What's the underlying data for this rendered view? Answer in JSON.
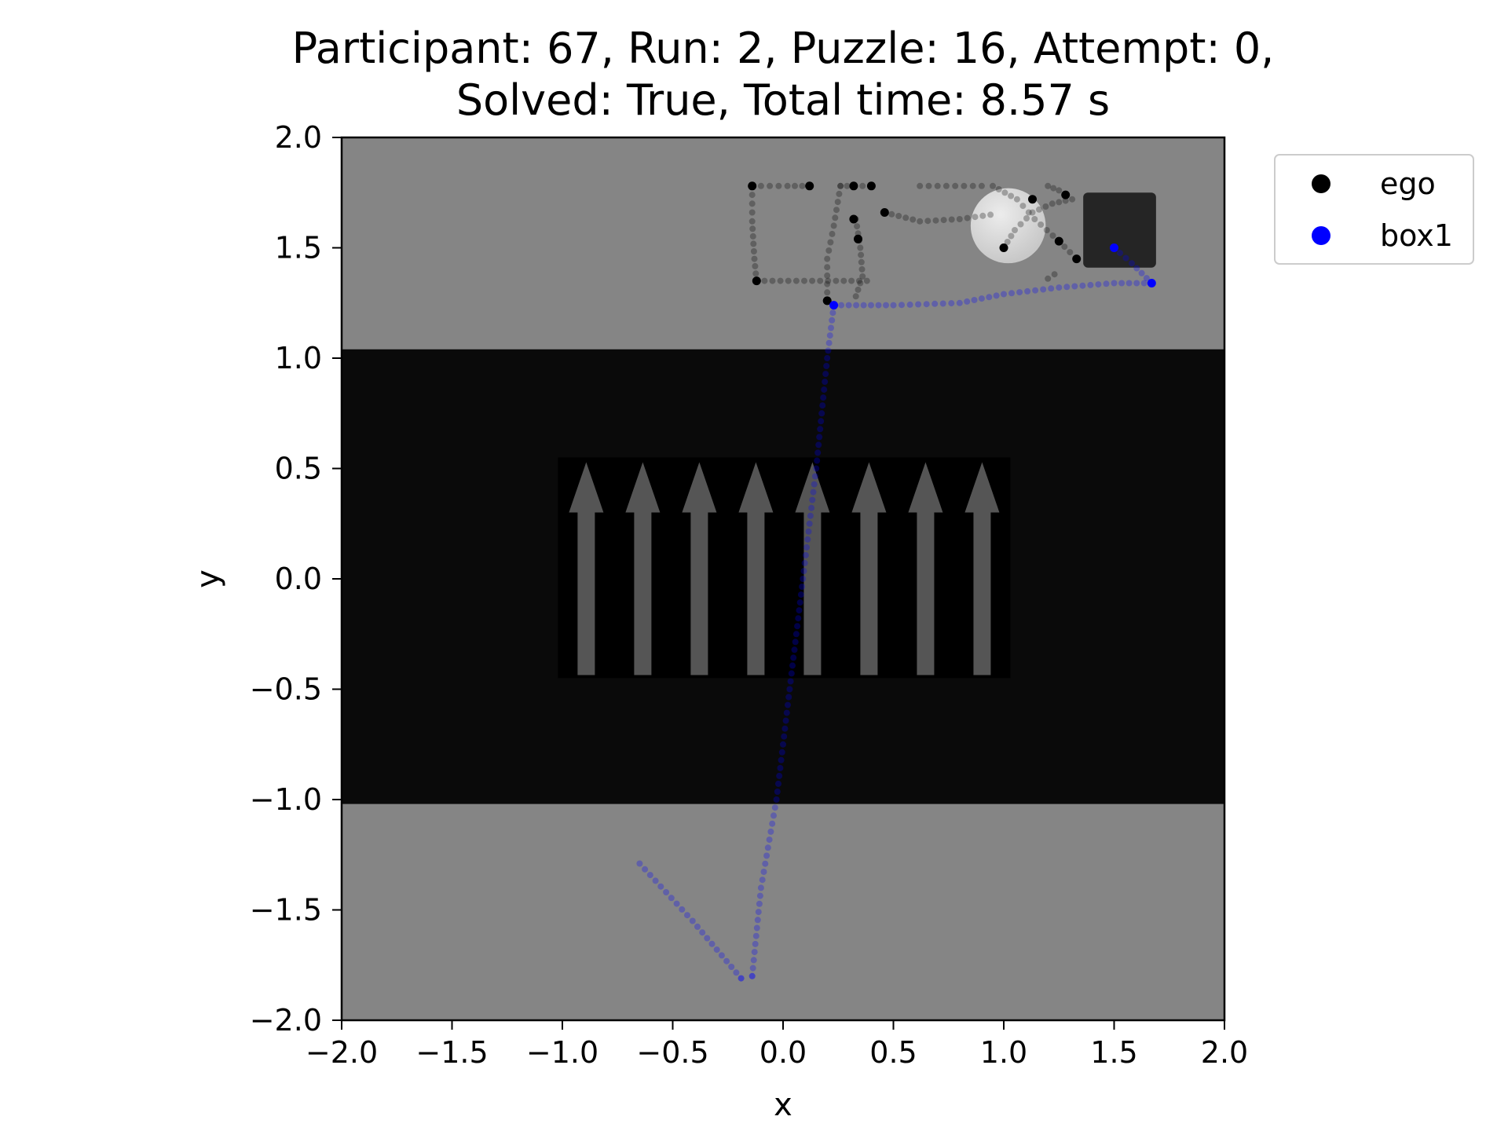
{
  "chart_data": {
    "type": "scatter",
    "title_lines": [
      "Participant: 67, Run: 2, Puzzle: 16, Attempt: 0,",
      "Solved: True, Total time: 8.57 s"
    ],
    "xlabel": "x",
    "ylabel": "y",
    "xlim": [
      -2.0,
      2.0
    ],
    "ylim": [
      -2.0,
      2.0
    ],
    "xticks": [
      -2.0,
      -1.5,
      -1.0,
      -0.5,
      0.0,
      0.5,
      1.0,
      1.5,
      2.0
    ],
    "yticks": [
      -2.0,
      -1.5,
      -1.0,
      -0.5,
      0.0,
      0.5,
      1.0,
      1.5,
      2.0
    ],
    "xtick_labels": [
      "−2.0",
      "−1.5",
      "−1.0",
      "−0.5",
      "0.0",
      "0.5",
      "1.0",
      "1.5",
      "2.0"
    ],
    "ytick_labels": [
      "−2.0",
      "−1.5",
      "−1.0",
      "−0.5",
      "0.0",
      "0.5",
      "1.0",
      "1.5",
      "2.0"
    ],
    "grid": false,
    "legend_position": "outside-top-right",
    "background_image": {
      "floor_color": "#858585",
      "band_color": "#0a0a0a",
      "band_y_range": [
        -1.02,
        1.04
      ],
      "arrow_panel": {
        "x_range": [
          -1.02,
          1.03
        ],
        "y_range": [
          -0.45,
          0.55
        ],
        "color": "#000000",
        "arrow_color": "#555555"
      },
      "arrow_count": 8,
      "ball": {
        "x": 1.02,
        "y": 1.6,
        "r": 0.17,
        "color": "#dedede"
      },
      "crate": {
        "x_range": [
          1.36,
          1.69
        ],
        "y_range": [
          1.41,
          1.75
        ],
        "color": "#252525"
      }
    },
    "series": [
      {
        "name": "ego",
        "color": "#000000",
        "segments": [
          [
            [
              -0.14,
              1.78
            ],
            [
              0.02,
              1.78
            ],
            [
              0.12,
              1.78
            ]
          ],
          [
            [
              -0.14,
              1.78
            ],
            [
              -0.14,
              1.62
            ],
            [
              -0.13,
              1.45
            ],
            [
              -0.12,
              1.35
            ]
          ],
          [
            [
              -0.12,
              1.35
            ],
            [
              0.06,
              1.35
            ],
            [
              0.24,
              1.35
            ],
            [
              0.38,
              1.35
            ]
          ],
          [
            [
              0.26,
              1.78
            ],
            [
              0.32,
              1.78
            ],
            [
              0.4,
              1.78
            ]
          ],
          [
            [
              0.26,
              1.78
            ],
            [
              0.23,
              1.6
            ],
            [
              0.2,
              1.45
            ],
            [
              0.2,
              1.26
            ]
          ],
          [
            [
              0.33,
              1.63
            ],
            [
              0.35,
              1.5
            ],
            [
              0.36,
              1.37
            ],
            [
              0.33,
              1.28
            ]
          ],
          [
            [
              0.46,
              1.66
            ],
            [
              0.62,
              1.62
            ],
            [
              0.8,
              1.63
            ],
            [
              0.94,
              1.65
            ]
          ],
          [
            [
              0.62,
              1.78
            ],
            [
              0.78,
              1.78
            ],
            [
              0.9,
              1.78
            ]
          ],
          [
            [
              0.95,
              1.78
            ],
            [
              1.06,
              1.72
            ],
            [
              1.14,
              1.63
            ],
            [
              1.25,
              1.53
            ]
          ],
          [
            [
              1.0,
              1.5
            ],
            [
              1.05,
              1.58
            ],
            [
              1.13,
              1.66
            ],
            [
              1.22,
              1.7
            ],
            [
              1.31,
              1.72
            ]
          ],
          [
            [
              1.2,
              1.78
            ],
            [
              1.25,
              1.76
            ],
            [
              1.28,
              1.74
            ]
          ],
          [
            [
              1.25,
              1.53
            ],
            [
              1.3,
              1.48
            ],
            [
              1.33,
              1.45
            ]
          ],
          [
            [
              1.23,
              1.38
            ],
            [
              1.2,
              1.36
            ]
          ]
        ],
        "points": [
          [
            -0.14,
            1.78
          ],
          [
            0.12,
            1.78
          ],
          [
            -0.12,
            1.35
          ],
          [
            0.32,
            1.78
          ],
          [
            0.4,
            1.78
          ],
          [
            0.32,
            1.63
          ],
          [
            0.2,
            1.26
          ],
          [
            0.46,
            1.66
          ],
          [
            0.34,
            1.54
          ],
          [
            1.0,
            1.5
          ],
          [
            1.25,
            1.53
          ],
          [
            1.28,
            1.74
          ],
          [
            1.33,
            1.45
          ],
          [
            1.13,
            1.72
          ]
        ]
      },
      {
        "name": "box1",
        "color": "#0000ff",
        "segments": [
          [
            [
              -0.65,
              -1.29
            ],
            [
              -0.41,
              -1.55
            ],
            [
              -0.19,
              -1.81
            ]
          ],
          [
            [
              -0.19,
              -1.81
            ],
            [
              -0.14,
              -1.8
            ]
          ],
          [
            [
              -0.14,
              -1.8
            ],
            [
              -0.1,
              -1.4
            ],
            [
              -0.03,
              -1.0
            ],
            [
              0.03,
              -0.5
            ],
            [
              0.09,
              0.0
            ],
            [
              0.15,
              0.5
            ],
            [
              0.2,
              1.0
            ],
            [
              0.23,
              1.24
            ]
          ],
          [
            [
              0.23,
              1.24
            ],
            [
              0.5,
              1.24
            ],
            [
              0.8,
              1.25
            ],
            [
              1.0,
              1.29
            ],
            [
              1.25,
              1.32
            ],
            [
              1.5,
              1.34
            ],
            [
              1.67,
              1.34
            ]
          ],
          [
            [
              1.67,
              1.34
            ],
            [
              1.58,
              1.43
            ],
            [
              1.5,
              1.5
            ]
          ]
        ],
        "points": [
          [
            0.23,
            1.24
          ],
          [
            1.5,
            1.5
          ],
          [
            1.67,
            1.34
          ]
        ]
      }
    ]
  }
}
